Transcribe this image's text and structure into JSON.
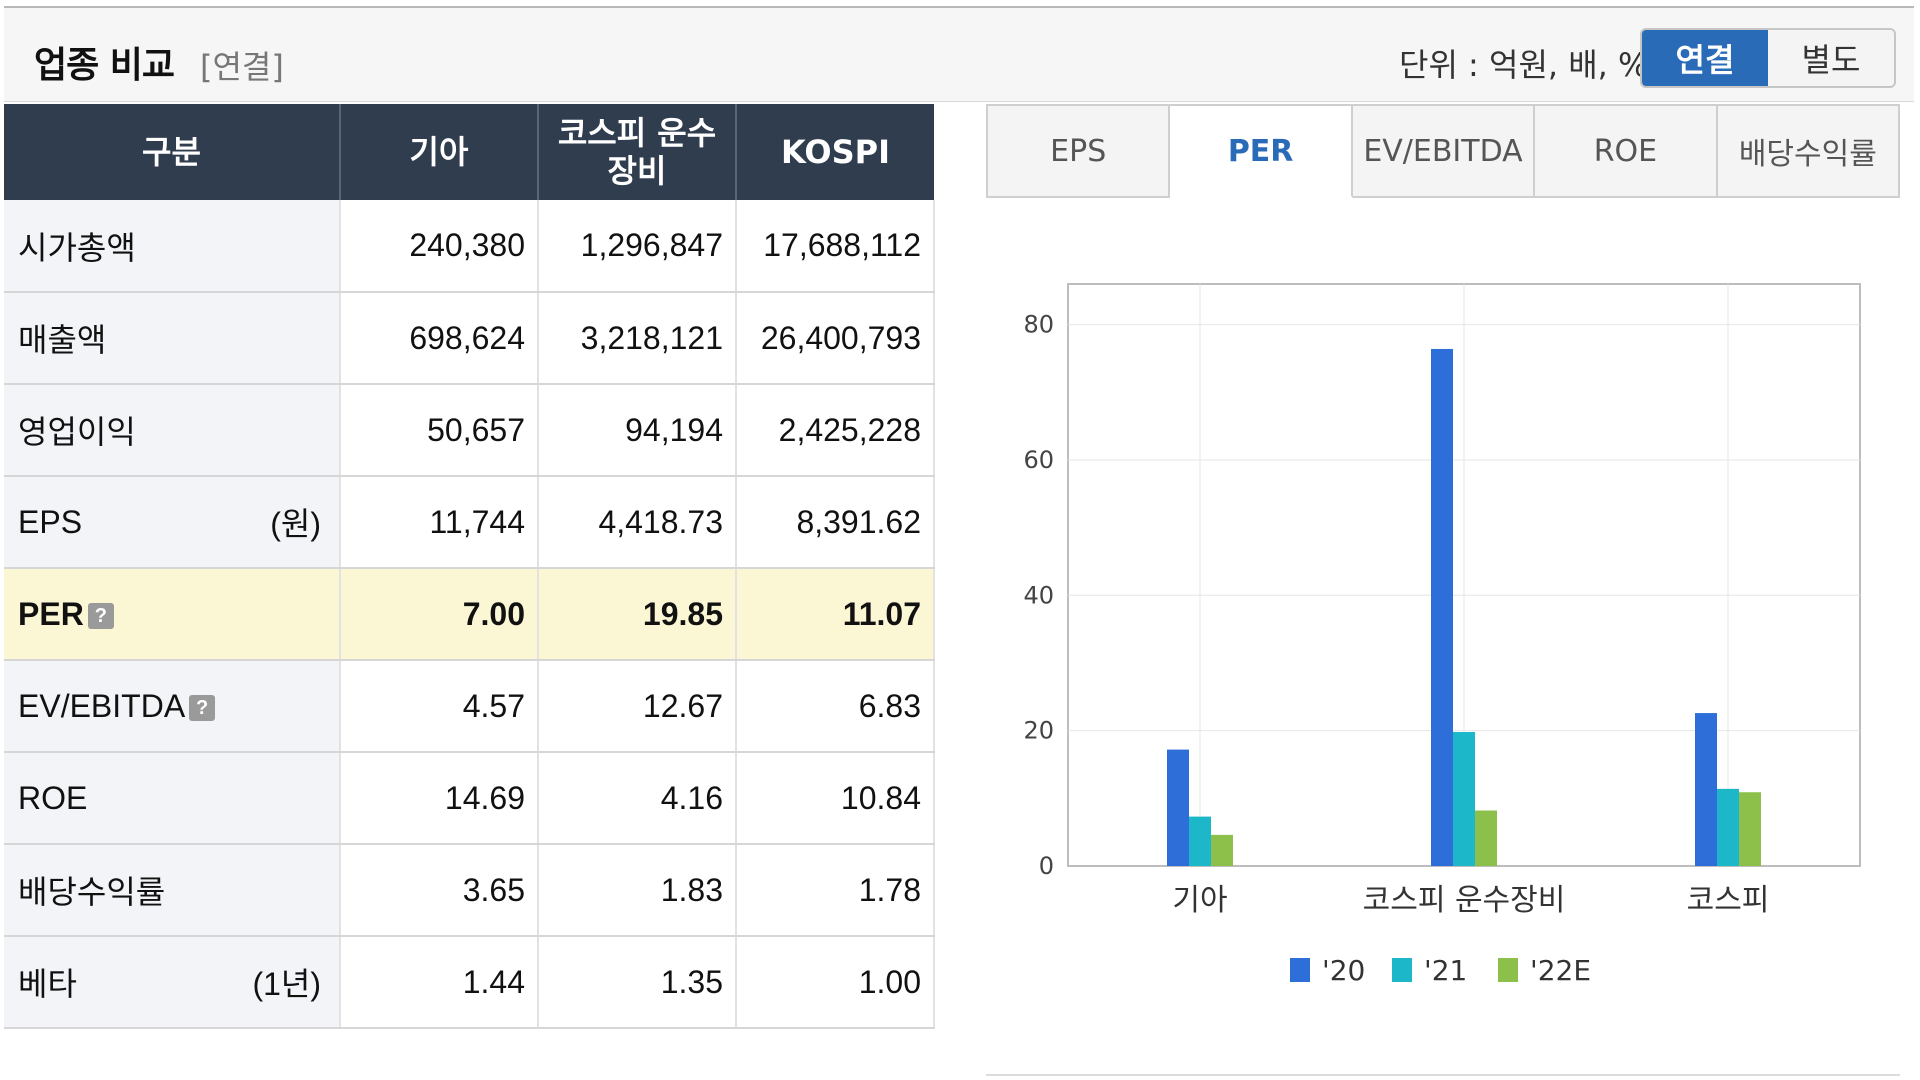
{
  "header": {
    "title": "업종 비교",
    "subtitle": "[연결]",
    "unit_text": "단위 : 억원, 배, %",
    "toggle": [
      {
        "label": "연결",
        "active": true
      },
      {
        "label": "별도",
        "active": false
      }
    ]
  },
  "table": {
    "columns": [
      "구분",
      "기아",
      "코스피 운수장비",
      "KOSPI"
    ],
    "rows": [
      {
        "label": "시가총액",
        "unit": "",
        "values": [
          "240,380",
          "1,296,847",
          "17,688,112"
        ]
      },
      {
        "label": "매출액",
        "unit": "",
        "values": [
          "698,624",
          "3,218,121",
          "26,400,793"
        ]
      },
      {
        "label": "영업이익",
        "unit": "",
        "values": [
          "50,657",
          "94,194",
          "2,425,228"
        ]
      },
      {
        "label": "EPS",
        "unit": "(원)",
        "values": [
          "11,744",
          "4,418.73",
          "8,391.62"
        ]
      },
      {
        "label": "PER",
        "unit": "",
        "help": "?",
        "highlight": true,
        "values": [
          "7.00",
          "19.85",
          "11.07"
        ]
      },
      {
        "label": "EV/EBITDA",
        "unit": "",
        "help": "?",
        "values": [
          "4.57",
          "12.67",
          "6.83"
        ]
      },
      {
        "label": "ROE",
        "unit": "",
        "values": [
          "14.69",
          "4.16",
          "10.84"
        ]
      },
      {
        "label": "배당수익률",
        "unit": "",
        "values": [
          "3.65",
          "1.83",
          "1.78"
        ]
      },
      {
        "label": "베타",
        "unit": "(1년)",
        "values": [
          "1.44",
          "1.35",
          "1.00"
        ]
      }
    ]
  },
  "tabs": [
    {
      "label": "EPS",
      "active": false
    },
    {
      "label": "PER",
      "active": true
    },
    {
      "label": "EV/EBITDA",
      "active": false
    },
    {
      "label": "ROE",
      "active": false
    },
    {
      "label": "배당수익률",
      "active": false
    }
  ],
  "colors": {
    "series_20": "#2d6ed8",
    "series_21": "#1cb7c9",
    "series_22E": "#8cc04b",
    "header_bg": "#2f3d4e",
    "accent": "#2a6bb8",
    "highlight_row": "#fbf7d4"
  },
  "chart_data": {
    "type": "bar",
    "categories": [
      "기아",
      "코스피 운수장비",
      "코스피"
    ],
    "series": [
      {
        "name": "'20",
        "values": [
          17.2,
          76.4,
          22.6
        ]
      },
      {
        "name": "'21",
        "values": [
          7.3,
          19.8,
          11.4
        ]
      },
      {
        "name": "'22E",
        "values": [
          4.6,
          8.2,
          10.9
        ]
      }
    ],
    "yticks": [
      0,
      20,
      40,
      60,
      80
    ],
    "ylim": [
      0,
      86
    ],
    "grid": true,
    "legend": "bottom"
  }
}
